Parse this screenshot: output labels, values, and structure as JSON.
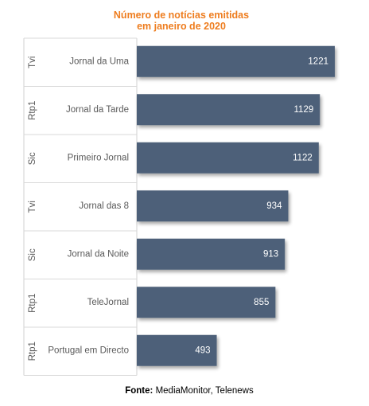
{
  "chart_data": {
    "type": "bar",
    "orientation": "horizontal",
    "title_line1": "Número de notícias emitidas",
    "title_line2": "em janeiro de 2020",
    "categories": [
      {
        "channel": "Tvi",
        "program": "Jornal da Uma"
      },
      {
        "channel": "Rtp1",
        "program": "Jornal da Tarde"
      },
      {
        "channel": "Sic",
        "program": "Primeiro Jornal"
      },
      {
        "channel": "Tvi",
        "program": "Jornal das 8"
      },
      {
        "channel": "Sic",
        "program": "Jornal da Noite"
      },
      {
        "channel": "Rtp1",
        "program": "TeleJornal"
      },
      {
        "channel": "Rtp1",
        "program": "Portugal em Directo"
      }
    ],
    "values": [
      1221,
      1129,
      1122,
      934,
      913,
      855,
      493
    ],
    "xlim": [
      0,
      1221
    ],
    "bar_color": "#4d6179",
    "label_color": "#ffffff",
    "grid": false
  },
  "source": {
    "label": "Fonte:",
    "text": "MediaMonitor, Telenews"
  }
}
